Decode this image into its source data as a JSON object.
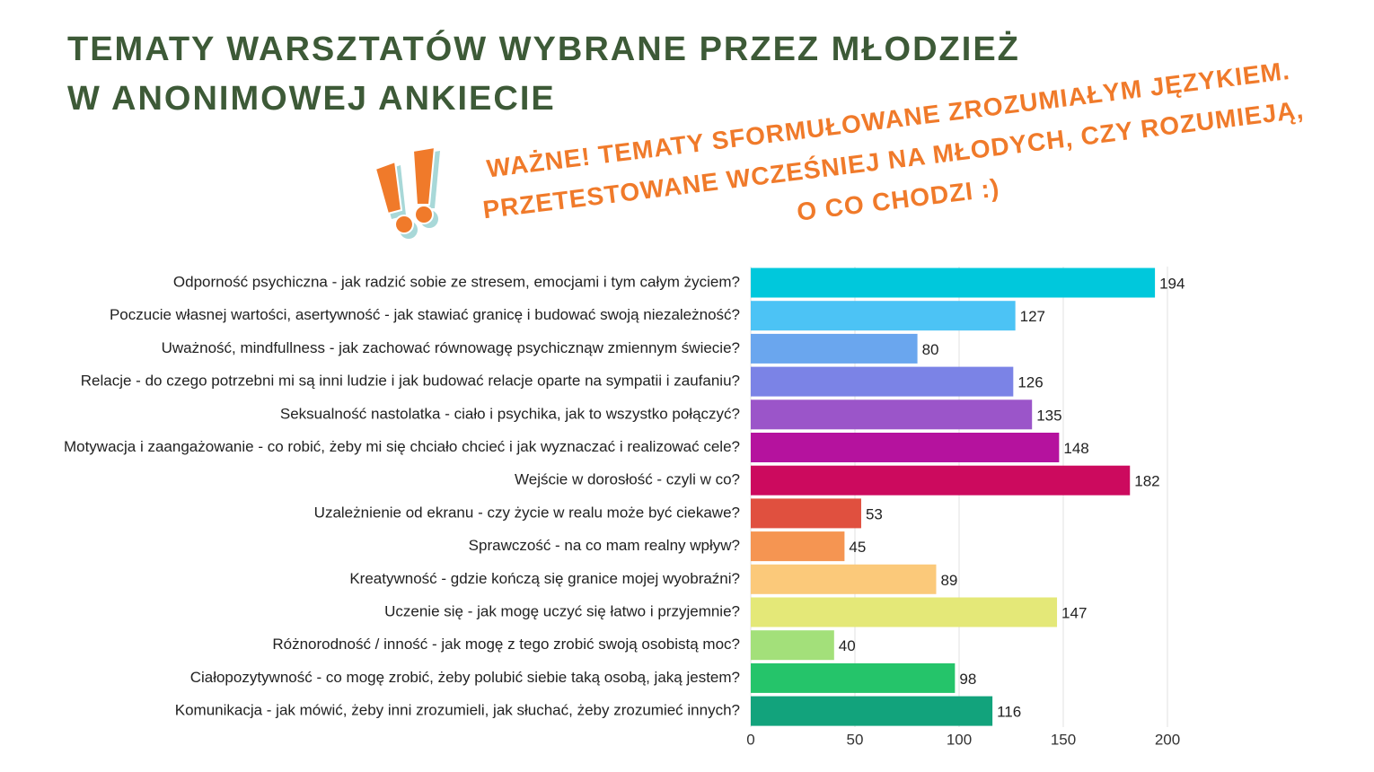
{
  "chart_data": {
    "type": "bar",
    "orientation": "horizontal",
    "title": [
      "TEMATY WARSZTATÓW WYBRANE PRZEZ MŁODZIEŻ",
      "W ANONIMOWEJ ANKIECIE"
    ],
    "annotation": [
      "WAŻNE! TEMATY SFORMUŁOWANE ZROZUMIAŁYM JĘZYKIEM.",
      "PRZETESTOWANE WCZEŚNIEJ NA MŁODYCH, CZY ROZUMIEJĄ,",
      "O CO CHODZI :)"
    ],
    "categories": [
      "Odporność psychiczna - jak radzić sobie ze stresem, emocjami i tym całym życiem?",
      "Poczucie własnej wartości, asertywność - jak stawiać granicę i budować swoją niezależność?",
      "Uważność, mindfullness - jak zachować równowagę psychicznąw zmiennym świecie?",
      "Relacje - do czego potrzebni mi są inni ludzie i jak budować relacje oparte na sympatii i zaufaniu?",
      "Seksualność nastolatka - ciało i psychika, jak to wszystko połączyć?",
      "Motywacja i zaangażowanie - co robić, żeby mi się chciało chcieć i jak wyznaczać i realizować cele?",
      "Wejście w dorosłość - czyli w co?",
      "Uzależnienie od ekranu - czy życie w realu może być ciekawe?",
      "Sprawczość - na co mam realny wpływ?",
      "Kreatywność - gdzie kończą się granice mojej wyobraźni?",
      "Uczenie się - jak mogę uczyć się łatwo i przyjemnie?",
      "Różnorodność / inność - jak mogę z tego zrobić swoją osobistą moc?",
      "Ciałopozytywność - co mogę zrobić, żeby polubić siebie taką osobą, jaką jestem?",
      "Komunikacja - jak mówić, żeby inni zrozumieli, jak słuchać, żeby zrozumieć innych?"
    ],
    "values": [
      194,
      127,
      80,
      126,
      135,
      148,
      182,
      53,
      45,
      89,
      147,
      40,
      98,
      116
    ],
    "colors": [
      "#00c8dc",
      "#4cc3f5",
      "#6aa6ee",
      "#7b83e6",
      "#9b55c9",
      "#b5129e",
      "#cc0a5e",
      "#e0503f",
      "#f59552",
      "#fbc97a",
      "#e4e878",
      "#a3e07a",
      "#25c46a",
      "#12a37c"
    ],
    "xlim": [
      0,
      200
    ],
    "xticks": [
      0,
      50,
      100,
      150,
      200
    ],
    "grid": true
  }
}
